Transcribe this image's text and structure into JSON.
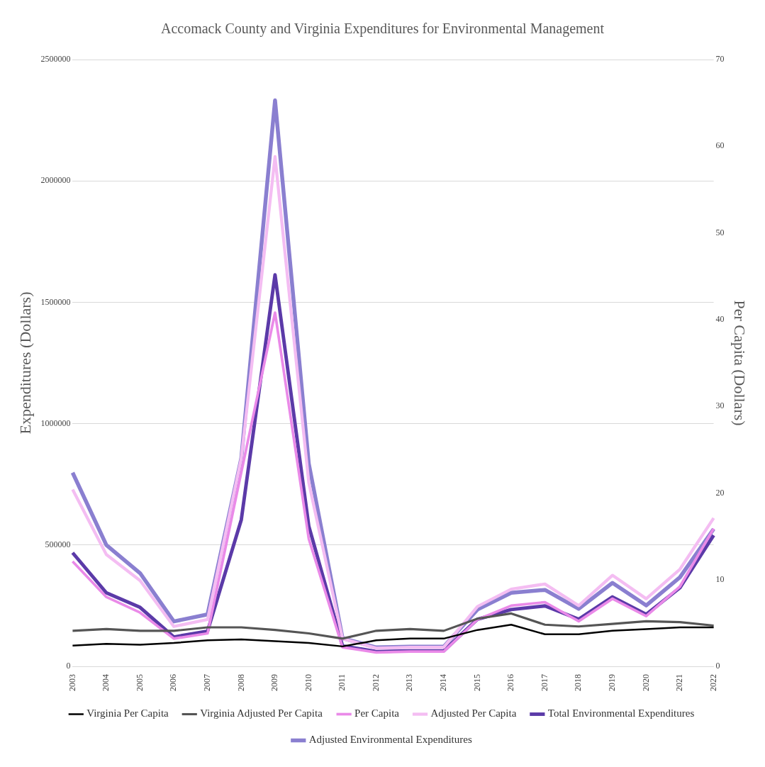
{
  "chart_data": {
    "type": "line",
    "title": "Accomack County and Virginia Expenditures for Environmental Management",
    "ylabel": "Expenditures (Dollars)",
    "y2label": "Per Capita (Dollars)",
    "categories": [
      "2003",
      "2004",
      "2005",
      "2006",
      "2007",
      "2008",
      "2009",
      "2010",
      "2011",
      "2012",
      "2013",
      "2014",
      "2015",
      "2016",
      "2017",
      "2018",
      "2019",
      "2020",
      "2021",
      "2022"
    ],
    "series": [
      {
        "name": "Virginia Per Capita",
        "color": "#000000",
        "axis": "y2",
        "values": [
          2.4,
          2.6,
          2.5,
          2.7,
          3.0,
          3.1,
          2.9,
          2.7,
          2.3,
          3.0,
          3.2,
          3.2,
          4.2,
          4.8,
          3.7,
          3.7,
          4.1,
          4.3,
          4.5,
          4.5
        ]
      },
      {
        "name": "Virginia Adjusted Per Capita",
        "color": "#555555",
        "axis": "y2",
        "values": [
          4.1,
          4.3,
          4.1,
          4.1,
          4.5,
          4.5,
          4.2,
          3.8,
          3.2,
          4.1,
          4.3,
          4.1,
          5.5,
          6.1,
          4.8,
          4.6,
          4.9,
          5.2,
          5.1,
          4.7
        ]
      },
      {
        "name": "Per Capita",
        "color": "#ea8ae8",
        "axis": "y2",
        "values": [
          12.1,
          8.0,
          6.2,
          3.2,
          3.8,
          22.4,
          40.8,
          14.7,
          2.2,
          1.6,
          1.7,
          1.7,
          5.4,
          7.0,
          7.4,
          5.2,
          7.8,
          5.8,
          9.2,
          15.9
        ]
      },
      {
        "name": "Adjusted Per Capita",
        "color": "#f4bdf2",
        "axis": "y2",
        "values": [
          20.4,
          12.9,
          9.9,
          4.6,
          5.4,
          24.0,
          58.8,
          21.2,
          3.2,
          2.1,
          2.2,
          2.2,
          6.9,
          8.9,
          9.5,
          7.0,
          10.5,
          7.8,
          11.2,
          17.1
        ]
      },
      {
        "name": "Total Environmental Expenditures",
        "color": "#5b3aa8",
        "axis": "y",
        "values": [
          468000,
          303000,
          243000,
          121000,
          145000,
          604000,
          1613000,
          578000,
          84000,
          61000,
          64000,
          64000,
          194000,
          234000,
          249000,
          194000,
          286000,
          214000,
          324000,
          540000
        ]
      },
      {
        "name": "Adjusted Environmental Expenditures",
        "color": "#8a7fd0",
        "axis": "y",
        "values": [
          798000,
          500000,
          384000,
          185000,
          214000,
          858000,
          2332000,
          835000,
          116000,
          78000,
          81000,
          81000,
          234000,
          303000,
          315000,
          237000,
          344000,
          251000,
          367000,
          566000
        ]
      }
    ],
    "ylim": [
      0,
      2500000
    ],
    "yticks": [
      0,
      500000,
      1000000,
      1500000,
      2000000,
      2500000
    ],
    "y2lim": [
      0,
      70
    ],
    "y2ticks": [
      0,
      10,
      20,
      30,
      40,
      50,
      60,
      70
    ],
    "grid": "y",
    "legend": "bottom",
    "marker": "none",
    "line_style": "solid"
  }
}
